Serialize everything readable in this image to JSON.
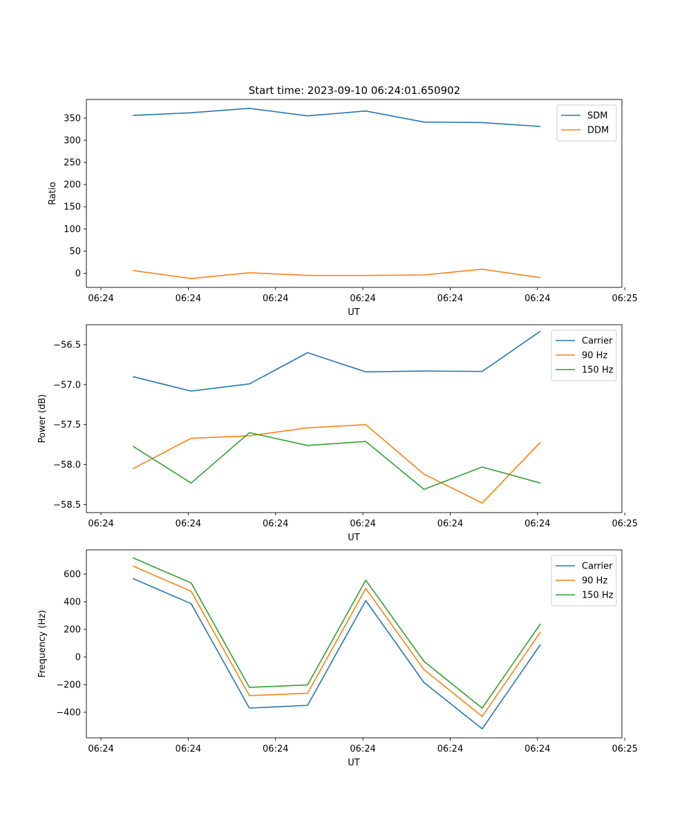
{
  "figure": {
    "title": "Start time: 2023-09-10 06:24:01.650902"
  },
  "colors": {
    "blue": "#1f77b4",
    "orange": "#ff7f0e",
    "green": "#2ca02c"
  },
  "chart_data": [
    {
      "type": "line",
      "title": "Start time: 2023-09-10 06:24:01.650902",
      "xlabel": "UT",
      "ylabel": "Ratio",
      "x": [
        1,
        2,
        3,
        4,
        5,
        6,
        7,
        8
      ],
      "xlim": [
        0.2,
        9.4
      ],
      "xticks": [
        0.45,
        1.95,
        3.45,
        4.95,
        6.45,
        7.95,
        9.45
      ],
      "xtick_labels": [
        "06:24",
        "06:24",
        "06:24",
        "06:24",
        "06:24",
        "06:24",
        "06:25"
      ],
      "ylim": [
        -32,
        392
      ],
      "yticks": [
        0,
        50,
        100,
        150,
        200,
        250,
        300,
        350
      ],
      "ytick_labels": [
        "0",
        "50",
        "100",
        "150",
        "200",
        "250",
        "300",
        "350"
      ],
      "legend_position": "top-right",
      "series": [
        {
          "name": "SDM",
          "color": "#1f77b4",
          "values": [
            356,
            362,
            372,
            355,
            366,
            341,
            340,
            331
          ]
        },
        {
          "name": "DDM",
          "color": "#ff7f0e",
          "values": [
            6,
            -12,
            1,
            -5,
            -5,
            -4,
            9,
            -10
          ]
        }
      ]
    },
    {
      "type": "line",
      "title": "",
      "xlabel": "UT",
      "ylabel": "Power (dB)",
      "x": [
        1,
        2,
        3,
        4,
        5,
        6,
        7,
        8
      ],
      "xlim": [
        0.2,
        9.4
      ],
      "xticks": [
        0.45,
        1.95,
        3.45,
        4.95,
        6.45,
        7.95,
        9.45
      ],
      "xtick_labels": [
        "06:24",
        "06:24",
        "06:24",
        "06:24",
        "06:24",
        "06:24",
        "06:25"
      ],
      "ylim": [
        -58.6,
        -56.25
      ],
      "yticks": [
        -56.5,
        -57.0,
        -57.5,
        -58.0,
        -58.5
      ],
      "ytick_labels": [
        "−56.5",
        "−57.0",
        "−57.5",
        "−58.0",
        "−58.5"
      ],
      "legend_position": "top-right",
      "series": [
        {
          "name": "Carrier",
          "color": "#1f77b4",
          "values": [
            -56.9,
            -57.08,
            -56.99,
            -56.6,
            -56.84,
            -56.83,
            -56.835,
            -56.33
          ]
        },
        {
          "name": "90 Hz",
          "color": "#ff7f0e",
          "values": [
            -58.05,
            -57.67,
            -57.64,
            -57.54,
            -57.5,
            -58.12,
            -58.48,
            -57.72
          ]
        },
        {
          "name": "150 Hz",
          "color": "#2ca02c",
          "values": [
            -57.77,
            -58.23,
            -57.6,
            -57.76,
            -57.71,
            -58.31,
            -58.03,
            -58.23
          ]
        }
      ]
    },
    {
      "type": "line",
      "title": "",
      "xlabel": "UT",
      "ylabel": "Frequency (Hz)",
      "x": [
        1,
        2,
        3,
        4,
        5,
        6,
        7,
        8
      ],
      "xlim": [
        0.2,
        9.4
      ],
      "xticks": [
        0.45,
        1.95,
        3.45,
        4.95,
        6.45,
        7.95,
        9.45
      ],
      "xtick_labels": [
        "06:24",
        "06:24",
        "06:24",
        "06:24",
        "06:24",
        "06:24",
        "06:25"
      ],
      "ylim": [
        -585,
        775
      ],
      "yticks": [
        -400,
        -200,
        0,
        200,
        400,
        600
      ],
      "ytick_labels": [
        "−400",
        "−200",
        "0",
        "200",
        "400",
        "600"
      ],
      "legend_position": "top-right",
      "series": [
        {
          "name": "Carrier",
          "color": "#1f77b4",
          "values": [
            568,
            386,
            -370,
            -350,
            408,
            -185,
            -520,
            90
          ]
        },
        {
          "name": "90 Hz",
          "color": "#ff7f0e",
          "values": [
            658,
            476,
            -280,
            -262,
            496,
            -92,
            -430,
            180
          ]
        },
        {
          "name": "150 Hz",
          "color": "#2ca02c",
          "values": [
            718,
            536,
            -220,
            -202,
            556,
            -32,
            -370,
            240
          ]
        }
      ]
    }
  ]
}
